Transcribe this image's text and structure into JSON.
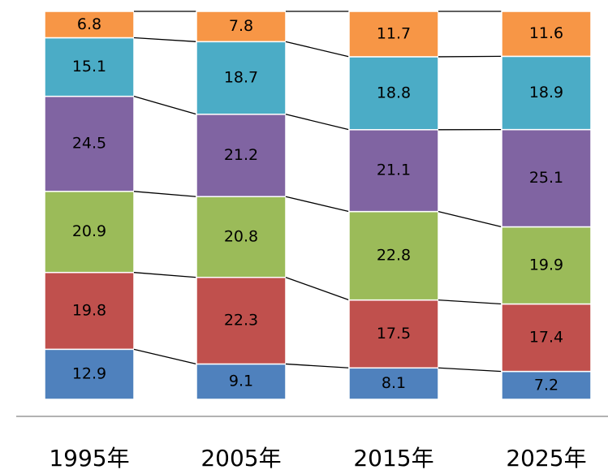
{
  "chart_data": {
    "type": "stacked-bar",
    "categories": [
      "1995年",
      "2005年",
      "2015年",
      "2025年"
    ],
    "series": [
      {
        "color": "#4f81bd",
        "values": [
          12.9,
          9.1,
          8.1,
          7.2
        ]
      },
      {
        "color": "#c0504d",
        "values": [
          19.8,
          22.3,
          17.5,
          17.4
        ]
      },
      {
        "color": "#9bbb59",
        "values": [
          20.9,
          20.8,
          22.8,
          19.9
        ]
      },
      {
        "color": "#8064a2",
        "values": [
          24.5,
          21.2,
          21.1,
          25.1
        ]
      },
      {
        "color": "#4bacc6",
        "values": [
          15.1,
          18.7,
          18.8,
          18.9
        ]
      },
      {
        "color": "#f79646",
        "values": [
          6.8,
          7.8,
          11.7,
          11.6
        ]
      }
    ]
  }
}
